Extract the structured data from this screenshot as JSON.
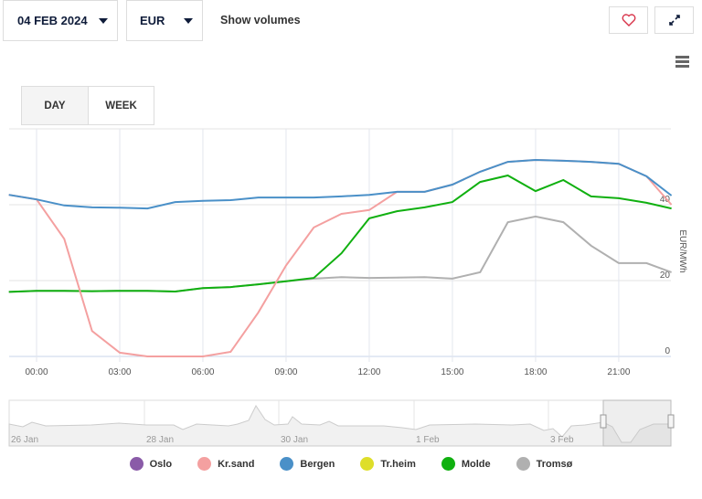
{
  "toolbar": {
    "date": "04 FEB 2024",
    "currency": "EUR",
    "show_volumes": "Show volumes"
  },
  "tabs": [
    {
      "label": "DAY",
      "active": true
    },
    {
      "label": "WEEK",
      "active": false
    }
  ],
  "chart_data": {
    "type": "line",
    "x_hours": [
      -1,
      0,
      1,
      2,
      3,
      4,
      5,
      6,
      7,
      8,
      9,
      10,
      11,
      12,
      13,
      14,
      15,
      16,
      17,
      18,
      19,
      20,
      21,
      22,
      22.9
    ],
    "x_ticks": [
      "00:00",
      "03:00",
      "06:00",
      "09:00",
      "12:00",
      "15:00",
      "18:00",
      "21:00"
    ],
    "x_tick_hours": [
      0,
      3,
      6,
      9,
      12,
      15,
      18,
      21
    ],
    "ylabel": "EUR/MWh",
    "y_ticks": [
      "0",
      "20",
      "40"
    ],
    "y_tick_values": [
      0,
      20,
      40
    ],
    "ylim": [
      0,
      60
    ],
    "grid": true,
    "series": [
      {
        "name": "Oslo",
        "color": "#8a5ba8",
        "values": []
      },
      {
        "name": "Kr.sand",
        "color": "#f4a0a0",
        "values": [
          42.6,
          41.4,
          31,
          6.7,
          1,
          0,
          0,
          0,
          1.2,
          11.6,
          24,
          34,
          37.6,
          38.6,
          43.4,
          43.4,
          45.3,
          48.7,
          51.3,
          51.8,
          51.6,
          51.3,
          50.8,
          47.5,
          40
        ]
      },
      {
        "name": "Bergen",
        "color": "#4a90c8",
        "values": [
          42.6,
          41.4,
          39.8,
          39.3,
          39.2,
          39,
          40.7,
          41,
          41.2,
          41.9,
          41.9,
          41.9,
          42.2,
          42.6,
          43.4,
          43.4,
          45.3,
          48.7,
          51.3,
          51.8,
          51.6,
          51.3,
          50.8,
          47.5,
          42.4
        ]
      },
      {
        "name": "Tr.heim",
        "color": "#dede2a",
        "values": []
      },
      {
        "name": "Molde",
        "color": "#10b010",
        "values": [
          17,
          17.3,
          17.3,
          17.2,
          17.3,
          17.3,
          17.1,
          18,
          18.3,
          19,
          19.8,
          20.7,
          27.2,
          36.4,
          38.3,
          39.3,
          40.7,
          46,
          47.7,
          43.6,
          46.5,
          42.2,
          41.7,
          40.5,
          39
        ]
      },
      {
        "name": "Tromsø",
        "color": "#b0b0b0",
        "values": [
          17,
          17.3,
          17.3,
          17.2,
          17.3,
          17.3,
          17.1,
          18,
          18.3,
          19,
          19.8,
          20.5,
          20.9,
          20.7,
          20.8,
          20.9,
          20.5,
          22.2,
          35.4,
          36.9,
          35.4,
          29.2,
          24.6,
          24.6,
          22.2
        ]
      }
    ]
  },
  "navigator": {
    "labels": [
      "26 Jan",
      "28 Jan",
      "30 Jan",
      "1 Feb",
      "3 Feb"
    ]
  },
  "icons": {
    "favorite": "heart-icon",
    "fullscreen": "expand-icon",
    "menu": "hamburger-icon"
  }
}
